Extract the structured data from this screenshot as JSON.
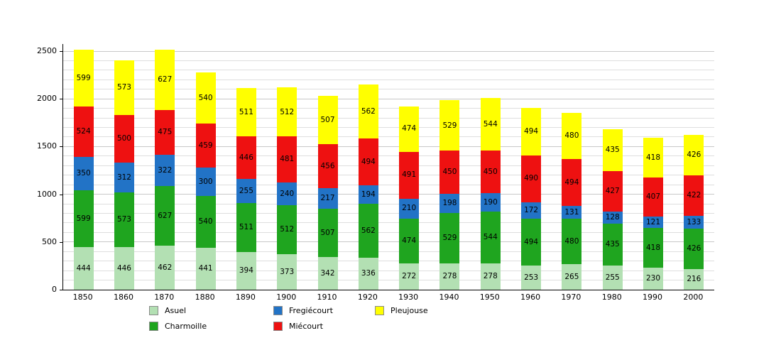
{
  "chart_data": {
    "type": "bar",
    "stacked": true,
    "title": "",
    "xlabel": "",
    "ylabel": "",
    "categories": [
      "1850",
      "1860",
      "1870",
      "1880",
      "1890",
      "1900",
      "1910",
      "1920",
      "1930",
      "1940",
      "1950",
      "1960",
      "1970",
      "1980",
      "1990",
      "2000"
    ],
    "series": [
      {
        "name": "Asuel",
        "color": "#b3e0b3",
        "values": [
          444,
          446,
          462,
          441,
          394,
          373,
          342,
          336,
          272,
          278,
          278,
          253,
          265,
          255,
          230,
          216
        ]
      },
      {
        "name": "Charmoille",
        "color": "#1fa51f",
        "values": [
          599,
          573,
          627,
          540,
          511,
          512,
          507,
          562,
          474,
          529,
          544,
          494,
          480,
          435,
          418,
          426
        ]
      },
      {
        "name": "Fregiécourt",
        "color": "#2273c6",
        "values": [
          350,
          312,
          322,
          300,
          255,
          240,
          217,
          194,
          210,
          198,
          190,
          172,
          131,
          128,
          121,
          133
        ]
      },
      {
        "name": "Miécourt",
        "color": "#ee1111",
        "values": [
          524,
          500,
          475,
          459,
          446,
          481,
          456,
          494,
          491,
          450,
          450,
          490,
          494,
          427,
          407,
          422
        ]
      },
      {
        "name": "Pleujouse",
        "color": "#ffff00",
        "values": [
          599,
          573,
          627,
          540,
          511,
          512,
          507,
          562,
          474,
          529,
          544,
          494,
          480,
          435,
          418,
          426
        ]
      }
    ],
    "ylim": [
      0,
      2500
    ],
    "yticks": [
      0,
      500,
      1000,
      1500,
      2000,
      2500
    ],
    "minor_grid_step": 100,
    "grid": "horizontal",
    "legend_position": "bottom",
    "legend_rows": [
      [
        "Asuel",
        "Fregiécourt",
        "Pleujouse"
      ],
      [
        "Charmoille",
        "Miécourt"
      ]
    ],
    "value_labels": "inside segments, centered"
  }
}
